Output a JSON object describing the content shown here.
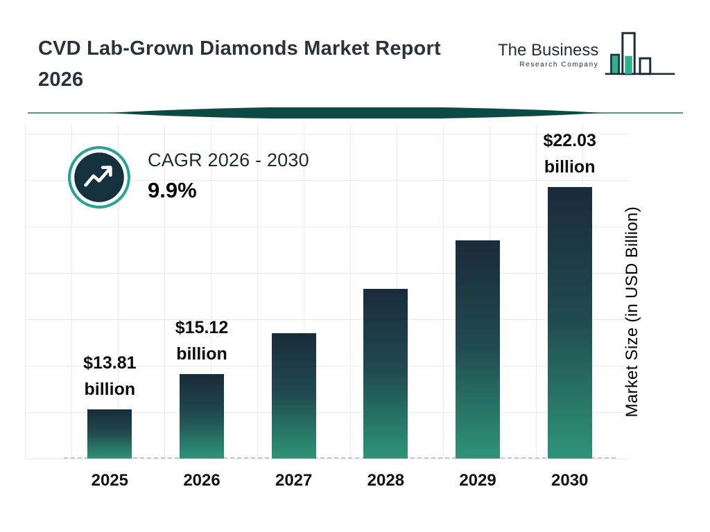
{
  "header": {
    "title": "CVD Lab-Grown Diamonds Market Report 2026",
    "logo": {
      "name_line1": "The Business",
      "name_line2": "Research Company"
    }
  },
  "cagr": {
    "label": "CAGR 2026 - 2030",
    "value": "9.9%"
  },
  "chart_data": {
    "type": "bar",
    "title": "CVD Lab-Grown Diamonds Market Report 2026",
    "categories": [
      "2025",
      "2026",
      "2027",
      "2028",
      "2029",
      "2030"
    ],
    "values": [
      13.81,
      15.12,
      16.62,
      18.26,
      20.07,
      22.03
    ],
    "value_labels": [
      "$13.81 billion",
      "$15.12 billion",
      null,
      null,
      null,
      "$22.03 billion"
    ],
    "xlabel": "",
    "ylabel": "Market Size (in USD Billion)",
    "ylim": [
      12,
      23
    ],
    "grid": true,
    "legend": false,
    "colors": {
      "bar_gradient_top": "#1a2b39",
      "bar_gradient_mid": "#204a4e",
      "bar_gradient_bottom": "#2e9478",
      "accent_teal": "#2aa392",
      "navy_circle": "#15313f",
      "divider_teal": "#0e4a44",
      "logo_teal": "#2fb08e",
      "logo_navy": "#1c2f3e"
    }
  }
}
